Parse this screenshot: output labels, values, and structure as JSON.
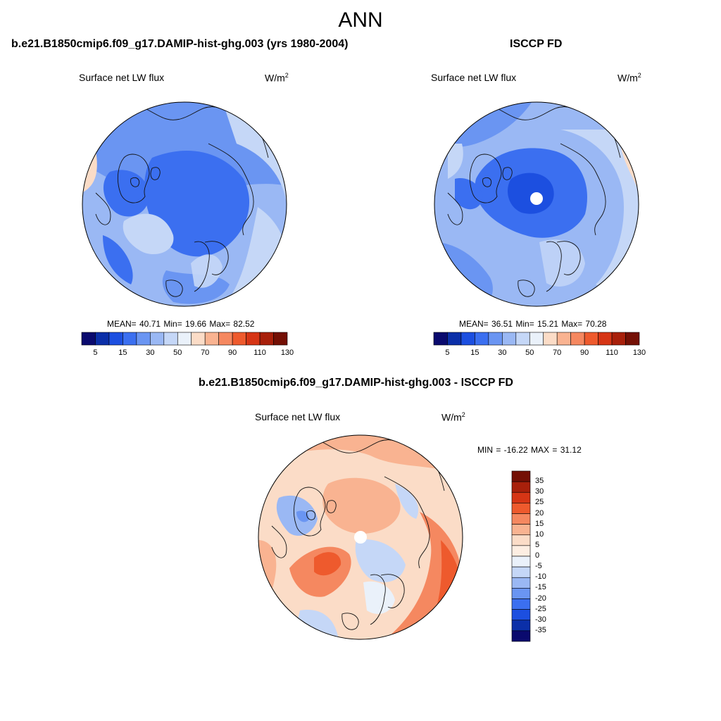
{
  "figure": {
    "title": "ANN"
  },
  "panels": [
    {
      "title": "b.e21.B1850cmip6.f09_g17.DAMIP-hist-ghg.003 (yrs 1980-2004)",
      "variable": "Surface net LW flux",
      "units": "W/m",
      "units_exponent": "2",
      "stats": {
        "mean": "40.71",
        "min": "19.66",
        "max": "82.52"
      },
      "stats_text": "MEAN=  40.71  Min=  19.66  Max=  82.52"
    },
    {
      "title": "ISCCP FD",
      "variable": "Surface net LW flux",
      "units": "W/m",
      "units_exponent": "2",
      "stats": {
        "mean": "36.51",
        "min": "15.21",
        "max": "70.28"
      },
      "stats_text": "MEAN=  36.51  Min=  15.21  Max=  70.28"
    },
    {
      "title": "b.e21.B1850cmip6.f09_g17.DAMIP-hist-ghg.003 - ISCCP FD",
      "variable": "Surface net LW flux",
      "units": "W/m",
      "units_exponent": "2",
      "stats": {
        "min": "-16.22",
        "max": "31.12"
      },
      "stats_text": "MIN = -16.22 MAX =  31.12"
    }
  ],
  "colorbar_abs": {
    "tick_labels": [
      "5",
      "15",
      "30",
      "50",
      "70",
      "90",
      "110",
      "130"
    ],
    "colors": [
      "#0a0a6e",
      "#0b2fa8",
      "#1c4fe0",
      "#3b6ff0",
      "#6a95f2",
      "#9ab8f4",
      "#c5d7f7",
      "#eaf1fa",
      "#fbdcc7",
      "#f9b391",
      "#f58860",
      "#ee5a2d",
      "#d63515",
      "#a8200b",
      "#741005"
    ]
  },
  "colorbar_diff": {
    "tick_labels": [
      "35",
      "30",
      "25",
      "20",
      "15",
      "10",
      "5",
      "0",
      "-5",
      "-10",
      "-15",
      "-20",
      "-25",
      "-30",
      "-35"
    ],
    "colors": [
      "#741005",
      "#a8200b",
      "#d63515",
      "#ee5a2d",
      "#f58860",
      "#f9b391",
      "#fbdcc7",
      "#fdeee2",
      "#eaf1fa",
      "#c5d7f7",
      "#9ab8f4",
      "#6a95f2",
      "#3b6ff0",
      "#1c4fe0",
      "#0b2fa8",
      "#0a0a6e"
    ]
  }
}
